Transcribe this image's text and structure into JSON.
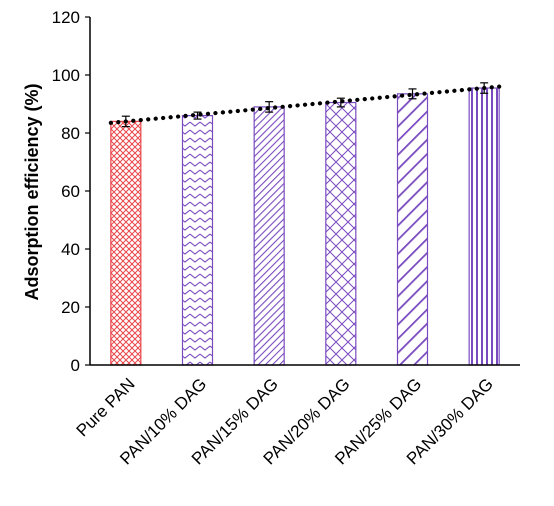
{
  "chart_data": {
    "type": "bar",
    "title": "",
    "xlabel": "",
    "ylabel": "Adsorption  efficiency (%)",
    "ylim": [
      0,
      120
    ],
    "yticks": [
      0,
      20,
      40,
      60,
      80,
      100,
      120
    ],
    "categories": [
      "Pure PAN",
      "PAN/10% DAG",
      "PAN/15% DAG",
      "PAN/20% DAG",
      "PAN/25% DAG",
      "PAN/30% DAG"
    ],
    "values": [
      84,
      86,
      89,
      90.5,
      93.5,
      95.5
    ],
    "errors": [
      1.8,
      1.2,
      1.8,
      1.5,
      1.7,
      1.8
    ],
    "trendline": {
      "style": "dotted",
      "color": "#000000",
      "from": 83.5,
      "to": 96
    },
    "colors": {
      "pure_pan": "#e8464a",
      "dag_series": "#7a4bbf"
    },
    "patterns": [
      "crosshatch",
      "zigzag",
      "diagonal-dense",
      "diamond-lattice",
      "diagonal-wide",
      "vertical-stripes"
    ],
    "grid": false,
    "legend": "none"
  }
}
